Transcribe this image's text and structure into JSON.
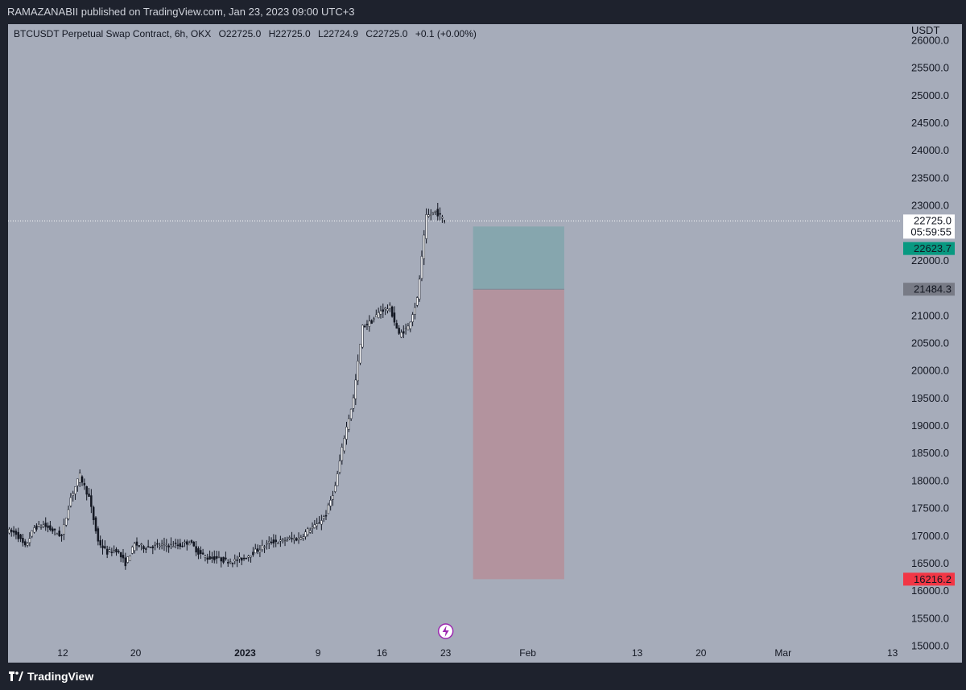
{
  "header": {
    "published_text": "RAMAZANABII published on TradingView.com, Jan 23, 2023 09:00 UTC+3"
  },
  "symbol": {
    "title": "BTCUSDT Perpetual Swap Contract, 6h, OKX",
    "open": "O22725.0",
    "high": "H22725.0",
    "low": "L22724.9",
    "close": "C22725.0",
    "change": "+0.1 (+0.00%)"
  },
  "footer": {
    "brand": "TradingView"
  },
  "colors": {
    "background": "#a6acba",
    "frame": "#1e222d",
    "candle": "#131722",
    "profit_zone": "#86a6ae",
    "loss_zone": "#b3939e",
    "entry_badge": "#089981",
    "stop_badge": "#f23645",
    "target_badge": "#787b86",
    "event_icon": "#9c27b0"
  },
  "chart_data": {
    "type": "line",
    "ylabel": "USDT",
    "ylim": [
      14700,
      26300
    ],
    "yticks": [
      15000,
      15500,
      16000,
      16500,
      17000,
      17500,
      18000,
      18500,
      19000,
      19500,
      20000,
      20500,
      21000,
      21500,
      22000,
      22500,
      23000,
      23500,
      24000,
      24500,
      25000,
      25500,
      26000
    ],
    "ytick_labels": [
      "15000.0",
      "15500.0",
      "16000.0",
      "16500.0",
      "17000.0",
      "17500.0",
      "18000.0",
      "18500.0",
      "19000.0",
      "19500.0",
      "20000.0",
      "20500.0",
      "21000.0",
      "21500.0",
      "22000.0",
      "22500.0",
      "23000.0",
      "23500.0",
      "24000.0",
      "24500.0",
      "25000.0",
      "25500.0",
      "26000.0"
    ],
    "xlim": [
      "2022-12-06",
      "2023-03-14"
    ],
    "xticks": [
      {
        "date": "2022-12-12",
        "label": "12",
        "bold": false
      },
      {
        "date": "2022-12-20",
        "label": "20",
        "bold": false
      },
      {
        "date": "2023-01-01",
        "label": "2023",
        "bold": true
      },
      {
        "date": "2023-01-09",
        "label": "9",
        "bold": false
      },
      {
        "date": "2023-01-16",
        "label": "16",
        "bold": false
      },
      {
        "date": "2023-01-23",
        "label": "23",
        "bold": false
      },
      {
        "date": "2023-02-01",
        "label": "Feb",
        "bold": false
      },
      {
        "date": "2023-02-13",
        "label": "13",
        "bold": false
      },
      {
        "date": "2023-02-20",
        "label": "20",
        "bold": false
      },
      {
        "date": "2023-03-01",
        "label": "Mar",
        "bold": false
      },
      {
        "date": "2023-03-13",
        "label": "13",
        "bold": false
      }
    ],
    "series": [
      {
        "values": [
          [
            "2022-12-06",
            17100
          ],
          [
            "2022-12-07",
            17050
          ],
          [
            "2022-12-08",
            16800
          ],
          [
            "2022-12-09",
            17150
          ],
          [
            "2022-12-10",
            17200
          ],
          [
            "2022-12-11",
            17100
          ],
          [
            "2022-12-12",
            17000
          ],
          [
            "2022-12-13",
            17700
          ],
          [
            "2022-12-14",
            18100
          ],
          [
            "2022-12-15",
            17700
          ],
          [
            "2022-12-16",
            16900
          ],
          [
            "2022-12-17",
            16700
          ],
          [
            "2022-12-18",
            16750
          ],
          [
            "2022-12-19",
            16500
          ],
          [
            "2022-12-20",
            16850
          ],
          [
            "2022-12-21",
            16800
          ],
          [
            "2022-12-22",
            16820
          ],
          [
            "2022-12-23",
            16830
          ],
          [
            "2022-12-24",
            16840
          ],
          [
            "2022-12-25",
            16830
          ],
          [
            "2022-12-26",
            16900
          ],
          [
            "2022-12-27",
            16700
          ],
          [
            "2022-12-28",
            16600
          ],
          [
            "2022-12-29",
            16600
          ],
          [
            "2022-12-30",
            16550
          ],
          [
            "2022-12-31",
            16550
          ],
          [
            "2023-01-01",
            16600
          ],
          [
            "2023-01-02",
            16700
          ],
          [
            "2023-01-03",
            16800
          ],
          [
            "2023-01-04",
            16900
          ],
          [
            "2023-01-05",
            16900
          ],
          [
            "2023-01-06",
            16950
          ],
          [
            "2023-01-07",
            16950
          ],
          [
            "2023-01-08",
            17100
          ],
          [
            "2023-01-09",
            17200
          ],
          [
            "2023-01-10",
            17400
          ],
          [
            "2023-01-11",
            17900
          ],
          [
            "2023-01-12",
            18800
          ],
          [
            "2023-01-13",
            19500
          ],
          [
            "2023-01-14",
            20800
          ],
          [
            "2023-01-15",
            20900
          ],
          [
            "2023-01-16",
            21100
          ],
          [
            "2023-01-17",
            21150
          ],
          [
            "2023-01-18",
            20650
          ],
          [
            "2023-01-19",
            20800
          ],
          [
            "2023-01-20",
            21300
          ],
          [
            "2023-01-21",
            22800
          ],
          [
            "2023-01-22",
            22900
          ],
          [
            "2023-01-23",
            22725
          ]
        ]
      }
    ],
    "current_price": 22725.0,
    "current_price_label": "22725.0",
    "countdown_label": "05:59:55",
    "position": {
      "type": "short",
      "start": "2023-01-26",
      "end": "2023-02-05",
      "entry": 22623.7,
      "target": 21484.3,
      "stop": 16216.2,
      "entry_label": "22623.7",
      "target_label": "21484.3",
      "stop_label": "16216.2"
    },
    "event_marker_date": "2023-01-23",
    "grid": false,
    "legend": "none"
  }
}
